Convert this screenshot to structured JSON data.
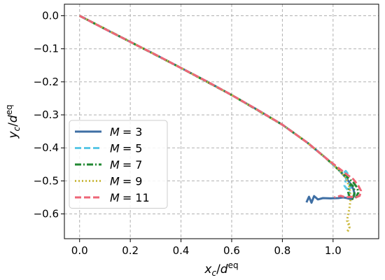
{
  "chart_data": {
    "type": "line",
    "title": "",
    "xlabel": {
      "base": "x",
      "sub": "c",
      "sep": "/",
      "base2": "d",
      "sup": "eq"
    },
    "ylabel": {
      "base": "y",
      "sub": "c",
      "sep": "/",
      "base2": "d",
      "sup": "eq"
    },
    "xlim": [
      -0.06,
      1.18
    ],
    "ylim": [
      -0.675,
      0.035
    ],
    "xticks": [
      0.0,
      0.2,
      0.4,
      0.6,
      0.8,
      1.0
    ],
    "xtick_labels": [
      "0.0",
      "0.2",
      "0.4",
      "0.6",
      "0.8",
      "1.0"
    ],
    "yticks": [
      0.0,
      -0.1,
      -0.2,
      -0.3,
      -0.4,
      -0.5,
      -0.6
    ],
    "ytick_labels": [
      "0.0",
      "−0.1",
      "−0.2",
      "−0.3",
      "−0.4",
      "−0.5",
      "−0.6"
    ],
    "grid": true,
    "legend_position": "lower-left",
    "series": [
      {
        "name": "M = 3",
        "label_var": "M",
        "label_eq": "= 3",
        "color": "#3f6fa4",
        "dash": "solid",
        "x": [
          0.0,
          0.1,
          0.2,
          0.3,
          0.4,
          0.5,
          0.6,
          0.7,
          0.8,
          0.9,
          0.97,
          1.02,
          1.05,
          1.07,
          1.08,
          1.085,
          1.08,
          1.07,
          1.055,
          1.04,
          1.02,
          0.99,
          0.96,
          0.94,
          0.925,
          0.915,
          0.905,
          0.895
        ],
        "y": [
          0.0,
          -0.04,
          -0.079,
          -0.118,
          -0.158,
          -0.198,
          -0.24,
          -0.284,
          -0.33,
          -0.385,
          -0.43,
          -0.465,
          -0.49,
          -0.51,
          -0.525,
          -0.54,
          -0.55,
          -0.555,
          -0.552,
          -0.55,
          -0.552,
          -0.553,
          -0.552,
          -0.556,
          -0.546,
          -0.566,
          -0.548,
          -0.565
        ]
      },
      {
        "name": "M = 5",
        "label_var": "M",
        "label_eq": "= 5",
        "color": "#5bc8e6",
        "dash": "dashed",
        "x": [
          0.0,
          0.2,
          0.4,
          0.6,
          0.8,
          0.9,
          0.97,
          1.02,
          1.04,
          1.05,
          1.06,
          1.05,
          1.045,
          1.055,
          1.065,
          1.07,
          1.065,
          1.06
        ],
        "y": [
          0.0,
          -0.079,
          -0.158,
          -0.24,
          -0.33,
          -0.385,
          -0.43,
          -0.465,
          -0.478,
          -0.47,
          -0.48,
          -0.5,
          -0.515,
          -0.525,
          -0.51,
          -0.525,
          -0.535,
          -0.545
        ]
      },
      {
        "name": "M = 7",
        "label_var": "M",
        "label_eq": "= 7",
        "color": "#228833",
        "dash": "dashdot",
        "x": [
          0.0,
          0.2,
          0.4,
          0.6,
          0.8,
          0.9,
          0.97,
          1.02,
          1.05,
          1.08,
          1.095,
          1.1,
          1.09,
          1.075,
          1.065,
          1.06,
          1.063,
          1.07,
          1.078,
          1.085,
          1.082,
          1.075
        ],
        "y": [
          0.0,
          -0.079,
          -0.158,
          -0.24,
          -0.33,
          -0.385,
          -0.43,
          -0.465,
          -0.485,
          -0.505,
          -0.52,
          -0.535,
          -0.55,
          -0.555,
          -0.548,
          -0.535,
          -0.52,
          -0.51,
          -0.515,
          -0.53,
          -0.545,
          -0.55
        ]
      },
      {
        "name": "M = 9",
        "label_var": "M",
        "label_eq": "= 9",
        "color": "#ccbb44",
        "dash": "dotted",
        "x": [
          0.0,
          0.2,
          0.4,
          0.6,
          0.8,
          0.9,
          0.97,
          1.02,
          1.05,
          1.065,
          1.07,
          1.065,
          1.06,
          1.055,
          1.06,
          1.065,
          1.06,
          1.055,
          1.065,
          1.06
        ],
        "y": [
          0.0,
          -0.079,
          -0.158,
          -0.24,
          -0.33,
          -0.385,
          -0.43,
          -0.465,
          -0.49,
          -0.52,
          -0.55,
          -0.58,
          -0.6,
          -0.62,
          -0.63,
          -0.64,
          -0.65,
          -0.655,
          -0.64,
          -0.62
        ]
      },
      {
        "name": "M = 11",
        "label_var": "M",
        "label_eq": "= 11",
        "color": "#ee6677",
        "dash": "dashed",
        "x": [
          0.0,
          0.1,
          0.2,
          0.3,
          0.4,
          0.5,
          0.6,
          0.7,
          0.8,
          0.9,
          0.97,
          1.02,
          1.05,
          1.08,
          1.1,
          1.11,
          1.105,
          1.09,
          1.07,
          1.05,
          1.03,
          1.015,
          1.005
        ],
        "y": [
          0.0,
          -0.04,
          -0.079,
          -0.118,
          -0.158,
          -0.198,
          -0.24,
          -0.284,
          -0.33,
          -0.385,
          -0.43,
          -0.46,
          -0.478,
          -0.495,
          -0.515,
          -0.53,
          -0.545,
          -0.55,
          -0.548,
          -0.55,
          -0.545,
          -0.548,
          -0.55
        ]
      }
    ]
  }
}
